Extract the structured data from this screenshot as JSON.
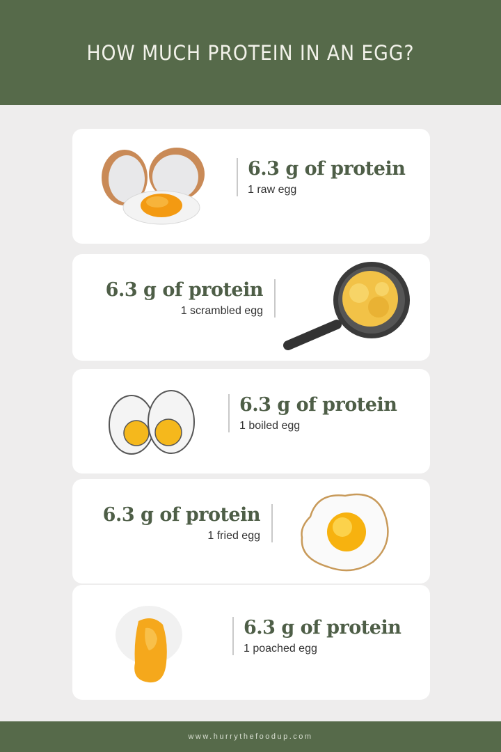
{
  "header": {
    "title": "HOW MUCH PROTEIN IN AN EGG?"
  },
  "items": [
    {
      "amount": "6.3 g of protein",
      "label": "1 raw egg",
      "icon": "raw-egg-icon"
    },
    {
      "amount": "6.3 g of protein",
      "label": "1 scrambled egg",
      "icon": "scrambled-egg-pan-icon"
    },
    {
      "amount": "6.3 g of protein",
      "label": "1 boiled egg",
      "icon": "boiled-egg-icon"
    },
    {
      "amount": "6.3 g of protein",
      "label": "1 fried egg",
      "icon": "fried-egg-icon"
    },
    {
      "amount": "6.3 g of protein",
      "label": "1 poached egg",
      "icon": "poached-egg-icon"
    }
  ],
  "footer": {
    "url": "www.hurrythefoodup.com"
  },
  "colors": {
    "brand_green": "#566a4a",
    "text_green": "#4e5e47",
    "background": "#eeeded",
    "yolk": "#f5a623"
  }
}
